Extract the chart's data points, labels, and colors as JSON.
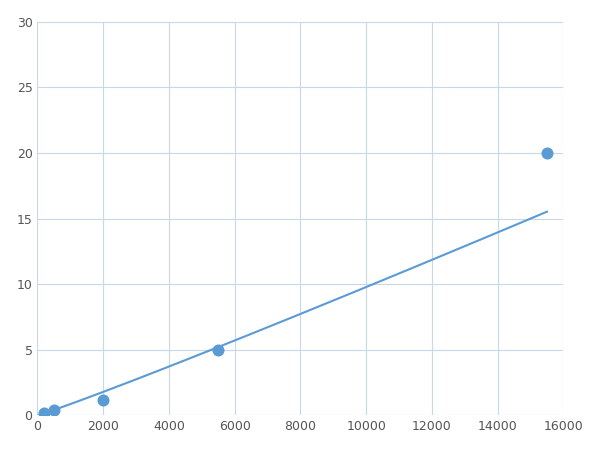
{
  "x": [
    200,
    500,
    2000,
    5500,
    15500
  ],
  "y": [
    0.2,
    0.4,
    1.2,
    5.0,
    20.0
  ],
  "line_color": "#5b9bd5",
  "marker_color": "#5b9bd5",
  "marker_size": 5,
  "linewidth": 1.5,
  "xlim": [
    0,
    16000
  ],
  "ylim": [
    0,
    30
  ],
  "xticks": [
    0,
    2000,
    4000,
    6000,
    8000,
    10000,
    12000,
    14000,
    16000
  ],
  "yticks": [
    0,
    5,
    10,
    15,
    20,
    25,
    30
  ],
  "grid_color": "#c8d8e8",
  "background_color": "#ffffff",
  "figsize": [
    6.0,
    4.5
  ],
  "dpi": 100
}
